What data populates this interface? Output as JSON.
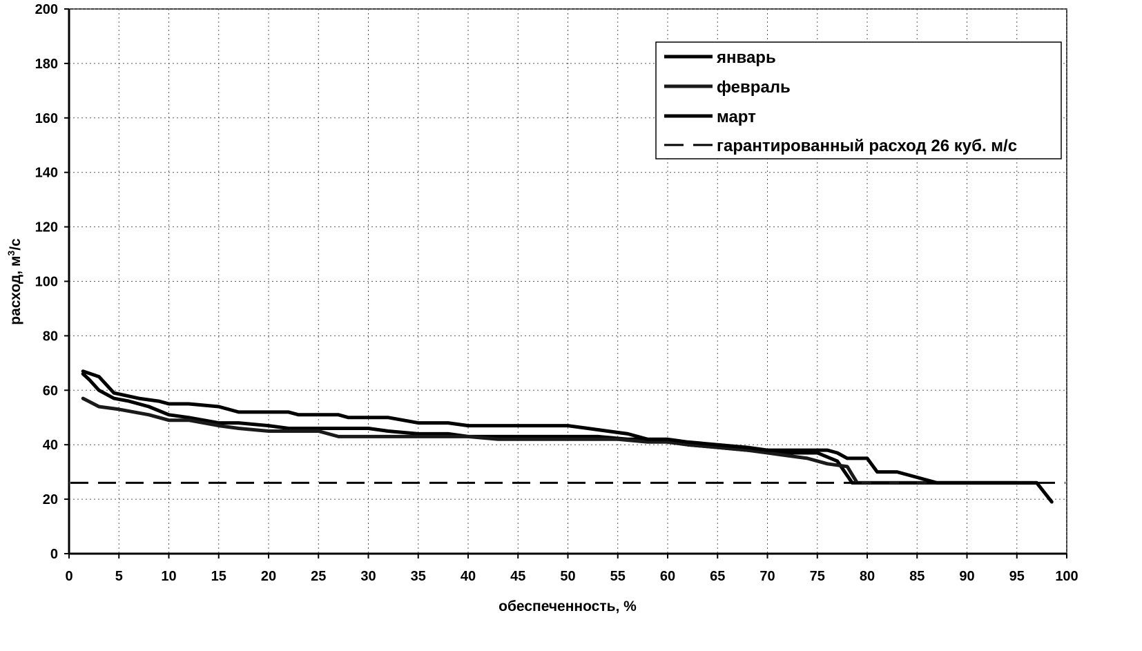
{
  "chart_data": {
    "type": "line",
    "xlabel": "обеспеченность, %",
    "ylabel": "расход, м",
    "ylabel_sup": "3",
    "ylabel_tail": "/с",
    "xlim": [
      0,
      100
    ],
    "ylim": [
      0,
      200
    ],
    "xticks": [
      0,
      5,
      10,
      15,
      20,
      25,
      30,
      35,
      40,
      45,
      50,
      55,
      60,
      65,
      70,
      75,
      80,
      85,
      90,
      95,
      100
    ],
    "yticks": [
      0,
      20,
      40,
      60,
      80,
      100,
      120,
      140,
      160,
      180,
      200
    ],
    "grid": true,
    "legend_position": "top-right",
    "series": [
      {
        "name": "январь",
        "color": "#000000",
        "style": "solid",
        "x": [
          1.4,
          2.0,
          3.0,
          4.5,
          6.0,
          8.0,
          10.0,
          12.0,
          15.0,
          17.0,
          20.0,
          22.0,
          25.0,
          28.0,
          30.0,
          32.0,
          35.0,
          38.0,
          40.0,
          43.0,
          45.0,
          48.0,
          50.0,
          53.0,
          56.0,
          58.0,
          60.0,
          62.0,
          65.0,
          68.0,
          70.0,
          72.0,
          75.0,
          77.0,
          78.5,
          80.0,
          81.0,
          83.0,
          85.0,
          87.0,
          90.0,
          95.0,
          97.0,
          98.5
        ],
        "y": [
          66,
          64,
          60,
          57,
          56,
          54,
          51,
          50,
          48,
          48,
          47,
          46,
          46,
          46,
          46,
          45,
          44,
          44,
          43,
          43,
          43,
          43,
          43,
          43,
          42,
          42,
          41,
          40,
          39,
          38,
          38,
          37,
          37,
          34,
          26,
          26,
          26,
          26,
          26,
          26,
          26,
          26,
          26,
          19
        ]
      },
      {
        "name": "февраль",
        "color": "#1a1a1a",
        "style": "solid",
        "x": [
          1.4,
          3.0,
          5.0,
          8.0,
          10.0,
          12.0,
          15.0,
          17.0,
          20.0,
          22.0,
          25.0,
          27.0,
          30.0,
          32.0,
          35.0,
          38.0,
          40.0,
          43.0,
          45.0,
          48.0,
          50.0,
          53.0,
          55.0,
          58.0,
          60.0,
          62.0,
          65.0,
          68.0,
          70.0,
          72.0,
          74.0,
          76.0,
          78.0,
          79.0,
          82.0,
          85.0,
          88.0,
          92.0,
          95.0
        ],
        "y": [
          57,
          54,
          53,
          51,
          49,
          49,
          47,
          46,
          45,
          45,
          45,
          43,
          43,
          43,
          43,
          43,
          43,
          42,
          42,
          42,
          42,
          42,
          42,
          41,
          41,
          40,
          39,
          38,
          37,
          36,
          35,
          33,
          32,
          26,
          26,
          26,
          26,
          26,
          26
        ]
      },
      {
        "name": "март",
        "color": "#000000",
        "style": "solid",
        "x": [
          1.4,
          3.0,
          4.5,
          7.0,
          9.0,
          10.0,
          12.0,
          15.0,
          17.0,
          20.0,
          22.0,
          23.0,
          27.0,
          28.0,
          30.0,
          32.0,
          35.0,
          38.0,
          40.0,
          42.0,
          45.0,
          48.0,
          50.0,
          52.0,
          54.0,
          56.0,
          58.0,
          60.0,
          62.0,
          65.0,
          68.0,
          70.0,
          72.0,
          74.0,
          76.0,
          77.0,
          78.0,
          80.0,
          81.0,
          83.0,
          85.0,
          87.0,
          90.0,
          95.0,
          97.0
        ],
        "y": [
          67,
          65,
          59,
          57,
          56,
          55,
          55,
          54,
          52,
          52,
          52,
          51,
          51,
          50,
          50,
          50,
          48,
          48,
          47,
          47,
          47,
          47,
          47,
          46,
          45,
          44,
          42,
          42,
          41,
          40,
          39,
          38,
          38,
          38,
          38,
          37,
          35,
          35,
          30,
          30,
          28,
          26,
          26,
          26,
          26
        ]
      },
      {
        "name": "гарантированный расход 26 куб. м/с",
        "color": "#000000",
        "style": "dashed",
        "x": [
          0,
          100
        ],
        "y": [
          26,
          26
        ]
      }
    ]
  }
}
